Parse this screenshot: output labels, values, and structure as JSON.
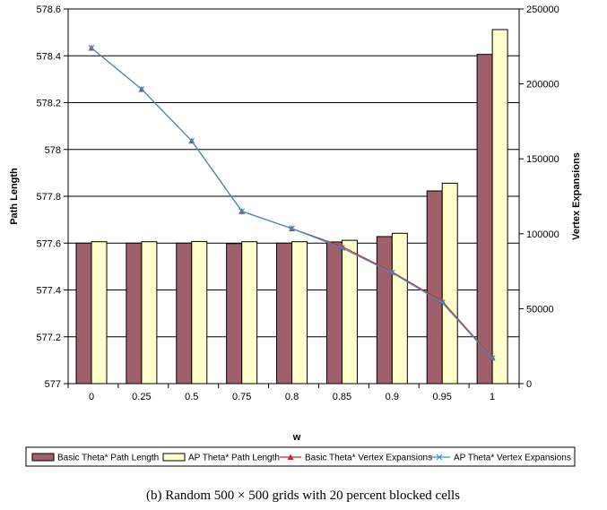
{
  "chart_data": {
    "type": "bar",
    "caption": "(b) Random 500 × 500 grids with 20 percent blocked cells",
    "xlabel": "w",
    "ylabel": "Path Length",
    "y2label": "Vertex Expansions",
    "categories": [
      "0",
      "0.25",
      "0.5",
      "0.75",
      "0.8",
      "0.85",
      "0.9",
      "0.95",
      "1"
    ],
    "ylim": [
      577,
      578.6
    ],
    "y_ticks": [
      "577",
      "577.2",
      "577.4",
      "577.6",
      "577.8",
      "578",
      "578.2",
      "578.4",
      "578.6"
    ],
    "y2lim": [
      0,
      250000
    ],
    "y2_ticks": [
      "0",
      "50000",
      "100000",
      "150000",
      "200000",
      "250000"
    ],
    "grid": true,
    "legend_position": "bottom",
    "series": [
      {
        "name": "Basic Theta* Path Length",
        "kind": "bar",
        "axis": "left",
        "color": "#a0606b",
        "values": [
          577.6,
          577.6,
          577.6,
          577.598,
          577.6,
          577.605,
          577.628,
          577.823,
          578.406
        ]
      },
      {
        "name": "AP Theta* Path Length",
        "kind": "bar",
        "axis": "left",
        "color": "#ffffcc",
        "values": [
          577.606,
          577.606,
          577.607,
          577.606,
          577.606,
          577.612,
          577.642,
          577.856,
          578.512
        ]
      },
      {
        "name": "Basic Theta* Vertex Expansions",
        "kind": "line",
        "axis": "right",
        "color": "#d02828",
        "marker": "triangle",
        "values": [
          224000,
          196500,
          162000,
          115000,
          103500,
          91500,
          74500,
          55000,
          17500
        ]
      },
      {
        "name": "AP Theta* Vertex Expansions",
        "kind": "line",
        "axis": "right",
        "color": "#3a8fc8",
        "marker": "x",
        "values": [
          224000,
          196500,
          162000,
          115000,
          103500,
          90500,
          74000,
          54000,
          17000
        ]
      }
    ]
  }
}
